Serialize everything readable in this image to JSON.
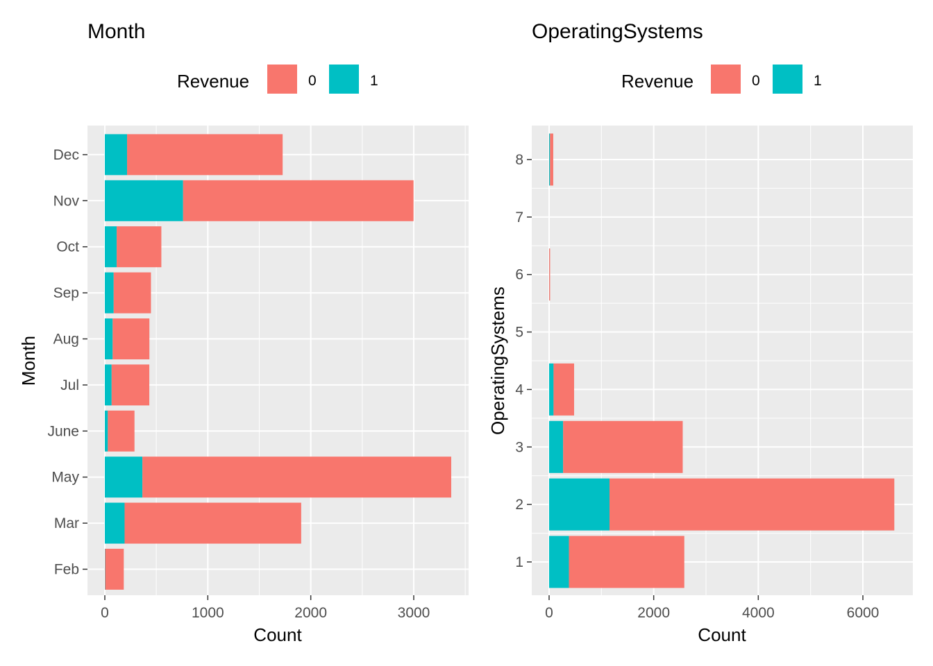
{
  "colors": {
    "revenue_0": "#F8766D",
    "revenue_1": "#00BFC4",
    "panel": "#EBEBEB",
    "grid": "#FFFFFF",
    "tick_text": "#4D4D4D"
  },
  "legend": {
    "title": "Revenue",
    "entries": [
      "0",
      "1"
    ]
  },
  "chart_data": [
    {
      "type": "bar",
      "orientation": "horizontal",
      "stacked": true,
      "title": "Month",
      "xlabel": "Count",
      "ylabel": "Month",
      "xlim": [
        0,
        3500
      ],
      "x_ticks": [
        "0",
        "1000",
        "2000",
        "3000"
      ],
      "categories": [
        "Feb",
        "Mar",
        "May",
        "June",
        "Jul",
        "Aug",
        "Sep",
        "Oct",
        "Nov",
        "Dec"
      ],
      "series": [
        {
          "name": "1",
          "values": [
            3,
            192,
            365,
            29,
            66,
            76,
            86,
            115,
            760,
            216
          ]
        },
        {
          "name": "0",
          "values": [
            181,
            1715,
            2999,
            259,
            366,
            357,
            362,
            434,
            2238,
            1511
          ]
        }
      ],
      "legend_position": "top",
      "grid": true
    },
    {
      "type": "bar",
      "orientation": "horizontal",
      "stacked": true,
      "title": "OperatingSystems",
      "xlabel": "Count",
      "ylabel": "OperatingSystems",
      "ylim": [
        1,
        8
      ],
      "xlim": [
        0,
        6900
      ],
      "x_ticks": [
        "0",
        "2000",
        "4000",
        "6000"
      ],
      "y_ticks": [
        "1",
        "2",
        "3",
        "4",
        "5",
        "6",
        "7",
        "8"
      ],
      "categories": [
        1,
        2,
        3,
        4,
        6,
        8
      ],
      "series": [
        {
          "name": "1",
          "values": [
            379,
            1155,
            268,
            85,
            1,
            17
          ]
        },
        {
          "name": "0",
          "values": [
            2206,
            5446,
            2287,
            393,
            18,
            62
          ]
        }
      ],
      "legend_position": "top",
      "grid": true
    }
  ]
}
